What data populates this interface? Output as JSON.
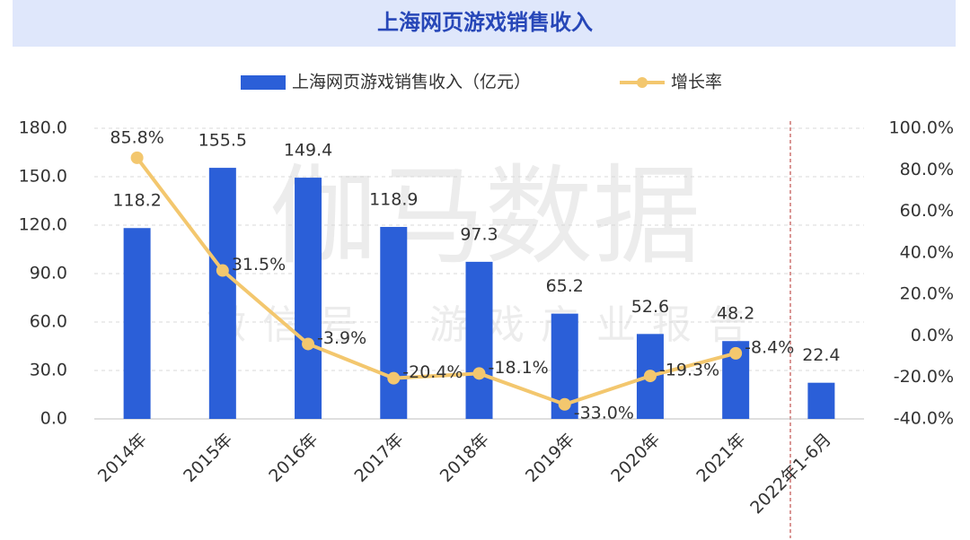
{
  "chart_data": {
    "type": "bar",
    "title": "上海网页游戏销售收入",
    "watermark": "伽马数据",
    "watermark_sub": "微信号：游戏产业报告",
    "categories": [
      "2014年",
      "2015年",
      "2016年",
      "2017年",
      "2018年",
      "2019年",
      "2020年",
      "2021年",
      "2022年1-6月"
    ],
    "series": [
      {
        "name": "上海网页游戏销售收入（亿元）",
        "type": "bar",
        "color": "#2b5fd8",
        "values": [
          118.2,
          155.5,
          149.4,
          118.9,
          97.3,
          65.2,
          52.6,
          48.2,
          22.4
        ]
      },
      {
        "name": "增长率",
        "type": "line",
        "axis": "y2",
        "color": "#f3c76e",
        "values": [
          85.8,
          31.5,
          -3.9,
          -20.4,
          -18.1,
          -33.0,
          -19.3,
          -8.4,
          null
        ],
        "value_labels": [
          "85.8%",
          "31.5%",
          "-3.9%",
          "-20.4%",
          "-18.1%",
          "-33.0%",
          "-19.3%",
          "-8.4%",
          null
        ]
      }
    ],
    "ylim": [
      0,
      180
    ],
    "yticks": [
      {
        "value": 0,
        "label": "0.0"
      },
      {
        "value": 30,
        "label": "30.0"
      },
      {
        "value": 60,
        "label": "60.0"
      },
      {
        "value": 90,
        "label": "90.0"
      },
      {
        "value": 120,
        "label": "120.0"
      },
      {
        "value": 150,
        "label": "150.0"
      },
      {
        "value": 180,
        "label": "180.0"
      }
    ],
    "y2lim": [
      -40,
      100
    ],
    "y2ticks": [
      {
        "value": -40,
        "label": "-40.0%"
      },
      {
        "value": -20,
        "label": "-20.0%"
      },
      {
        "value": 0,
        "label": "0.0%"
      },
      {
        "value": 20,
        "label": "20.0%"
      },
      {
        "value": 40,
        "label": "40.0%"
      },
      {
        "value": 60,
        "label": "60.0%"
      },
      {
        "value": 80,
        "label": "80.0%"
      },
      {
        "value": 100,
        "label": "100.0%"
      }
    ],
    "grid": true,
    "legend": "top"
  }
}
